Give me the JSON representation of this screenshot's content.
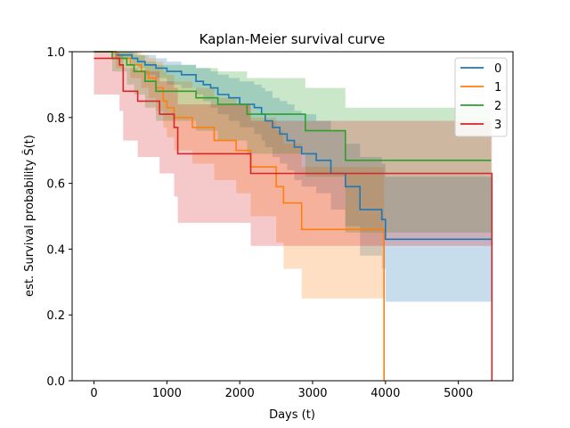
{
  "chart_data": {
    "type": "line",
    "step": true,
    "title": "Kaplan-Meier survival curve",
    "xlabel": "Days (t)",
    "ylabel": "est. Survival probability Ŝ(t)",
    "xlim": [
      -300,
      5750
    ],
    "ylim": [
      0,
      1
    ],
    "xticks": [
      0,
      1000,
      2000,
      3000,
      4000,
      5000
    ],
    "yticks": [
      0.0,
      0.2,
      0.4,
      0.6,
      0.8,
      1.0
    ],
    "xtick_labels": [
      "0",
      "1000",
      "2000",
      "3000",
      "4000",
      "5000"
    ],
    "ytick_labels": [
      "0.0",
      "0.2",
      "0.4",
      "0.6",
      "0.8",
      "1.0"
    ],
    "grid": false,
    "legend_position": "top-right",
    "confidence_bands": true,
    "series": [
      {
        "name": "0",
        "color": "#1f77b4",
        "x": [
          0,
          300,
          520,
          600,
          700,
          850,
          1000,
          1200,
          1400,
          1500,
          1600,
          1700,
          1850,
          2000,
          2200,
          2300,
          2350,
          2450,
          2550,
          2650,
          2750,
          2850,
          3050,
          3250,
          3450,
          3650,
          3950,
          4000,
          5450
        ],
        "y": [
          1.0,
          0.99,
          0.98,
          0.97,
          0.96,
          0.95,
          0.94,
          0.93,
          0.91,
          0.9,
          0.89,
          0.87,
          0.86,
          0.84,
          0.83,
          0.81,
          0.79,
          0.77,
          0.75,
          0.73,
          0.71,
          0.69,
          0.67,
          0.63,
          0.59,
          0.52,
          0.49,
          0.43,
          0.43
        ],
        "lower": [
          1.0,
          0.98,
          0.96,
          0.95,
          0.93,
          0.92,
          0.9,
          0.89,
          0.87,
          0.85,
          0.83,
          0.81,
          0.79,
          0.77,
          0.75,
          0.73,
          0.71,
          0.68,
          0.66,
          0.64,
          0.61,
          0.59,
          0.57,
          0.52,
          0.47,
          0.38,
          0.34,
          0.24,
          0.24
        ],
        "upper": [
          1.0,
          1.0,
          1.0,
          0.99,
          0.99,
          0.98,
          0.97,
          0.96,
          0.95,
          0.95,
          0.94,
          0.93,
          0.92,
          0.91,
          0.9,
          0.89,
          0.88,
          0.86,
          0.85,
          0.84,
          0.82,
          0.81,
          0.79,
          0.76,
          0.72,
          0.68,
          0.66,
          0.62,
          0.62
        ]
      },
      {
        "name": "1",
        "color": "#ff7f0e",
        "x": [
          0,
          300,
          500,
          650,
          750,
          850,
          950,
          1000,
          1100,
          1350,
          1650,
          1950,
          2150,
          2250,
          2500,
          2600,
          2850,
          3950,
          3980,
          3980
        ],
        "y": [
          1.0,
          0.98,
          0.96,
          0.94,
          0.92,
          0.89,
          0.85,
          0.83,
          0.8,
          0.77,
          0.73,
          0.7,
          0.65,
          0.65,
          0.59,
          0.54,
          0.46,
          0.46,
          0.0,
          0.0
        ],
        "lower": [
          1.0,
          0.95,
          0.92,
          0.89,
          0.86,
          0.82,
          0.77,
          0.74,
          0.7,
          0.66,
          0.61,
          0.57,
          0.5,
          0.5,
          0.42,
          0.34,
          0.25,
          0.25,
          0.0,
          0.0
        ],
        "upper": [
          1.0,
          1.0,
          1.0,
          0.99,
          0.98,
          0.97,
          0.94,
          0.93,
          0.91,
          0.89,
          0.86,
          0.84,
          0.8,
          0.8,
          0.76,
          0.72,
          0.65,
          0.65,
          0.0,
          0.0
        ]
      },
      {
        "name": "2",
        "color": "#2ca02c",
        "x": [
          0,
          250,
          450,
          550,
          700,
          850,
          1400,
          1700,
          2100,
          2900,
          3450,
          5450
        ],
        "y": [
          1.0,
          0.98,
          0.96,
          0.94,
          0.91,
          0.88,
          0.86,
          0.84,
          0.81,
          0.76,
          0.67,
          0.67
        ],
        "lower": [
          1.0,
          0.94,
          0.9,
          0.87,
          0.83,
          0.79,
          0.76,
          0.73,
          0.69,
          0.62,
          0.45,
          0.45
        ],
        "upper": [
          1.0,
          1.0,
          1.0,
          0.99,
          0.97,
          0.96,
          0.95,
          0.94,
          0.92,
          0.89,
          0.83,
          0.83
        ]
      },
      {
        "name": "3",
        "color": "#d62728",
        "x": [
          0,
          350,
          400,
          600,
          900,
          1100,
          1150,
          2150,
          5450,
          5460
        ],
        "y": [
          0.98,
          0.96,
          0.88,
          0.85,
          0.81,
          0.77,
          0.69,
          0.63,
          0.63,
          0.0
        ],
        "lower": [
          0.87,
          0.82,
          0.73,
          0.68,
          0.63,
          0.56,
          0.48,
          0.41,
          0.41,
          0.0
        ],
        "upper": [
          1.0,
          0.99,
          0.95,
          0.94,
          0.91,
          0.89,
          0.84,
          0.79,
          0.79,
          0.0
        ]
      }
    ]
  }
}
